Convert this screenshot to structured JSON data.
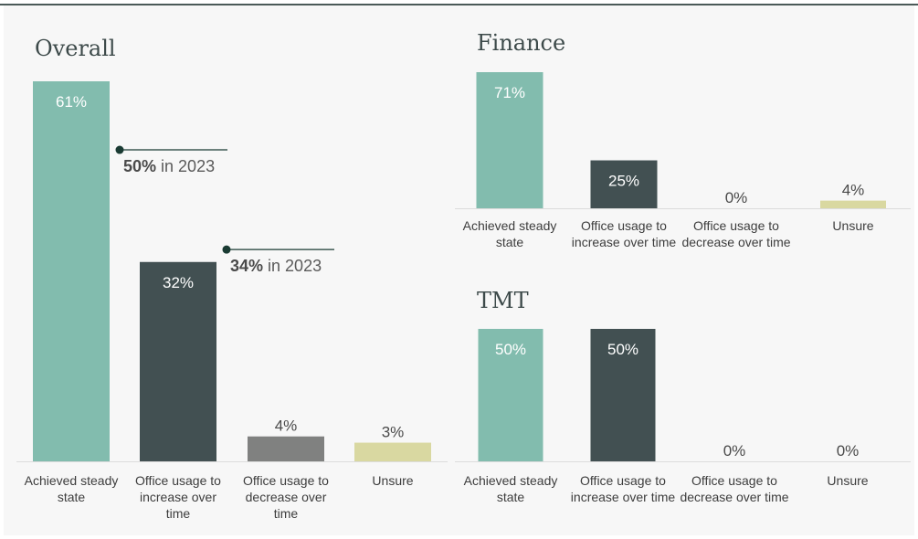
{
  "colors": {
    "steady": "#82bcae",
    "increase": "#425052",
    "decrease": "#808180",
    "unsure": "#d9d8a1",
    "light_text": "#ffffff",
    "dark_text": "#4a4a4a",
    "baseline": "#dcdcdc",
    "annotation_line": "#1a3b33"
  },
  "chart_data": [
    {
      "id": "overall",
      "type": "bar",
      "title": "Overall",
      "categories": [
        [
          "Achieved steady",
          "state"
        ],
        [
          "Office usage to",
          "increase over",
          "time"
        ],
        [
          "Office usage to",
          "decrease over",
          "time"
        ],
        [
          "Unsure"
        ]
      ],
      "values": [
        61,
        32,
        4,
        3
      ],
      "value_labels": [
        "61%",
        "32%",
        "4%",
        "3%"
      ],
      "annotations": [
        {
          "category_index": 0,
          "bold": "50%",
          "text": " in 2023",
          "value": 50
        },
        {
          "category_index": 1,
          "bold": "34%",
          "text": " in 2023",
          "value": 34
        }
      ]
    },
    {
      "id": "finance",
      "type": "bar",
      "title": "Finance",
      "categories": [
        [
          "Achieved steady",
          "state"
        ],
        [
          "Office usage to",
          "increase over time"
        ],
        [
          "Office usage to",
          "decrease over time"
        ],
        [
          "Unsure"
        ]
      ],
      "values": [
        71,
        25,
        0,
        4
      ],
      "value_labels": [
        "71%",
        "25%",
        "0%",
        "4%"
      ]
    },
    {
      "id": "tmt",
      "type": "bar",
      "title": "TMT",
      "categories": [
        [
          "Achieved steady",
          "state"
        ],
        [
          "Office usage to",
          "increase over time"
        ],
        [
          "Office usage to",
          "decrease over time"
        ],
        [
          "Unsure"
        ]
      ],
      "values": [
        50,
        50,
        0,
        0
      ],
      "value_labels": [
        "50%",
        "50%",
        "0%",
        "0%"
      ]
    }
  ]
}
